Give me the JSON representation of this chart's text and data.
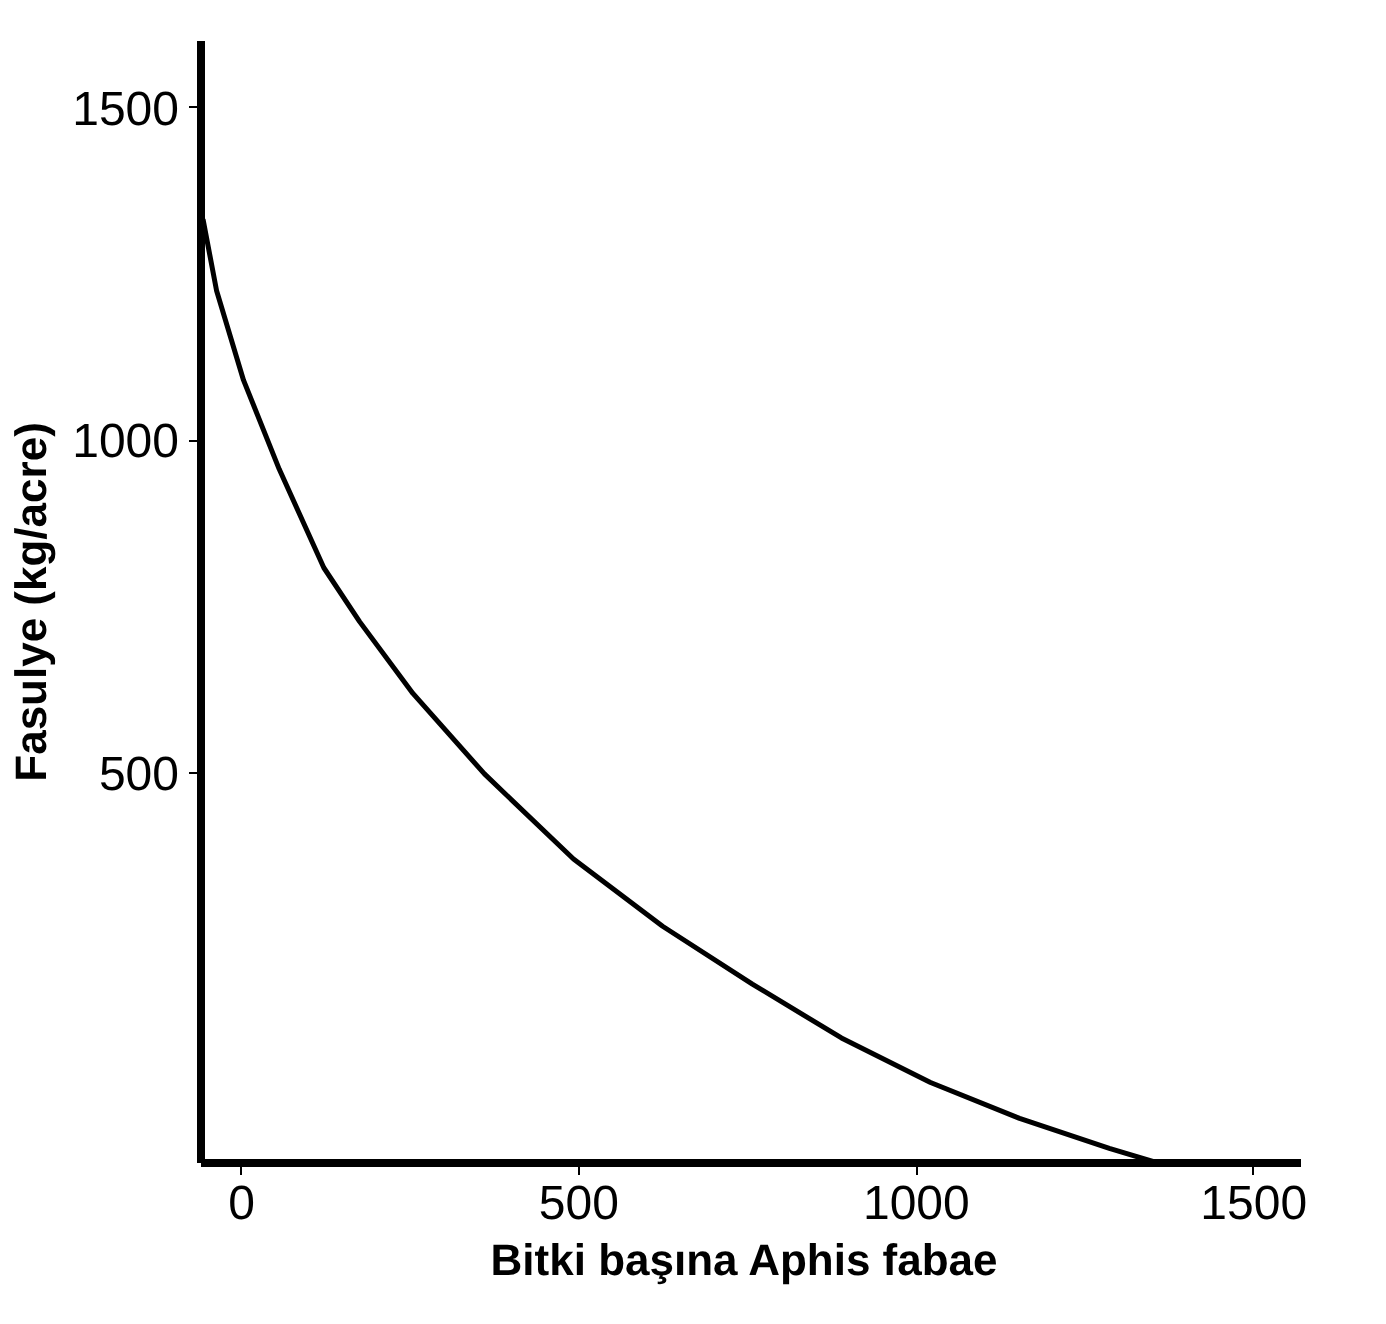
{
  "chart_data": {
    "type": "line",
    "xlabel": "Bitki  başına Aphis fabae",
    "ylabel": "Fasulye (kg/acre)",
    "x": [
      -57,
      -37,
      3,
      56,
      122,
      175,
      254,
      360,
      492,
      624,
      757,
      889,
      1021,
      1153,
      1286,
      1358
    ],
    "series": [
      {
        "color": "#000000",
        "values": [
          1332,
          1225,
          1090,
          956,
          808,
          727,
          619,
          498,
          370,
          269,
          182,
          101,
          34,
          -20,
          -65,
          -87
        ]
      }
    ],
    "xlim": [
      -60,
      1570
    ],
    "ylim": [
      -87,
      1600
    ],
    "xticks": [
      0,
      500,
      1000,
      1500
    ],
    "yticks": [
      500,
      1000,
      1500
    ],
    "grid": false,
    "marker": "none",
    "line_style": "solid"
  }
}
